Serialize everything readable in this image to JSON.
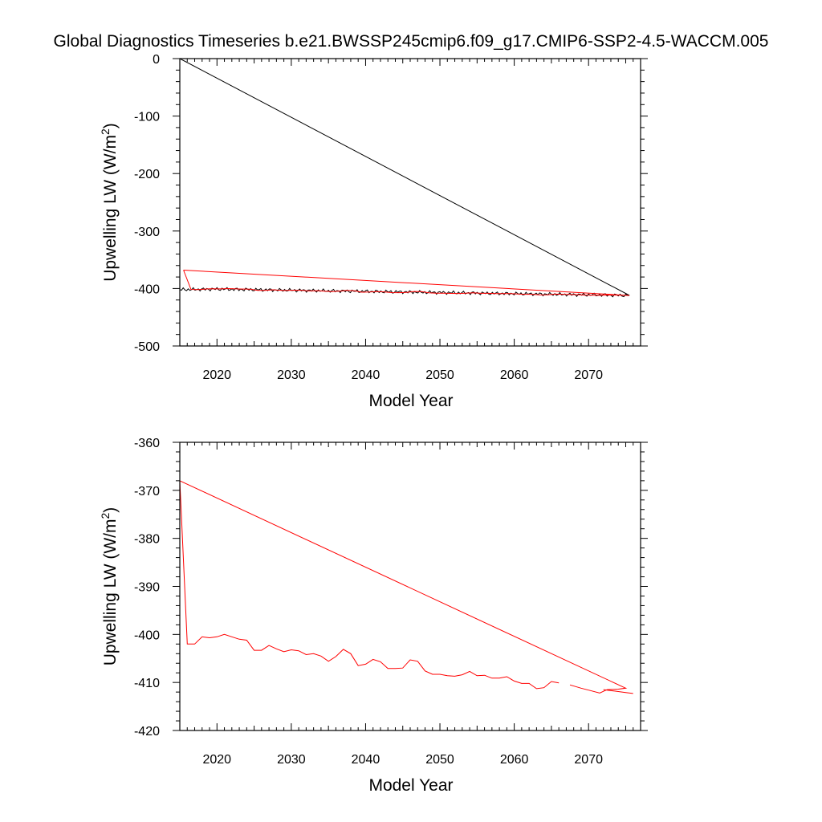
{
  "figure_title": "Global Diagnostics Timeseries b.e21.BWSSP245cmip6.f09_g17.CMIP6-SSP2-4.5-WACCM.005",
  "colors": {
    "background": "#ffffff",
    "axes": "#000000",
    "black_series": "#000000",
    "red_series": "#ff0000"
  },
  "chart_data": [
    {
      "type": "line",
      "title": "",
      "xlabel": "Model Year",
      "ylabel_prefix": "Upwelling LW (W/m",
      "ylabel_sup": "2",
      "ylabel_suffix": ")",
      "xlim": [
        2015,
        2077
      ],
      "ylim": [
        -500,
        0
      ],
      "xticks": [
        2020,
        2030,
        2040,
        2050,
        2060,
        2070
      ],
      "xtick_labels": [
        "2020",
        "2030",
        "2040",
        "2050",
        "2060",
        "2070"
      ],
      "yticks": [
        0,
        -100,
        -200,
        -300,
        -400,
        -500
      ],
      "ytick_labels": [
        "0",
        "-100",
        "-200",
        "-300",
        "-400",
        "-500"
      ],
      "grid": false,
      "legend": "none",
      "series": [
        {
          "color": "#000000",
          "x": [
            2015,
            2075.5
          ],
          "y": [
            0,
            -412
          ],
          "note_wrap": "wrap-around segment"
        },
        {
          "color": "#000000",
          "oscillating": true,
          "x": [
            2015,
            2020,
            2025,
            2030,
            2035,
            2040,
            2045,
            2050,
            2055,
            2060,
            2065,
            2070,
            2075.5
          ],
          "y": [
            -402,
            -401,
            -402,
            -403,
            -404,
            -405,
            -406,
            -407,
            -408,
            -409,
            -410,
            -411,
            -412
          ]
        },
        {
          "color": "#ff0000",
          "x": [
            2015.5,
            2016.5,
            2017.5,
            2019,
            2020.5,
            2021.5,
            2023,
            2024.5,
            2025.5,
            2026.5,
            2027.5,
            2029,
            2030.5,
            2031.5,
            2032.5,
            2033.5,
            2034.5,
            2035.5,
            2036.5,
            2037.5,
            2038.5,
            2039.5,
            2040.5,
            2041.5,
            2042.5,
            2043.5,
            2044.5,
            2045.5,
            2046.5,
            2047.5,
            2048.5,
            2049.5,
            2050.5,
            2051.5,
            2052.5,
            2053.5,
            2054.5,
            2055.5,
            2056.5,
            2057.5,
            2058.5,
            2059.5,
            2060.5,
            2061.5,
            2062.5,
            2063.5,
            2064.5,
            2065.5,
            2066.5,
            2067.5,
            2068.5,
            2069.5,
            2070.5,
            2071.5,
            2072.5,
            2073.5,
            2074.5,
            2075.5,
            2015.5
          ],
          "y": [
            -368,
            -401.5,
            -401.8,
            -400.5,
            -400.7,
            -400.2,
            -400.8,
            -401.2,
            -403.2,
            -403.2,
            -402.3,
            -403.5,
            -403,
            -403.3,
            -404.2,
            -403.8,
            -404.6,
            -405.5,
            -404.5,
            -403.2,
            -404.1,
            -406.4,
            -406.1,
            -405.4,
            -405.8,
            -407.1,
            -407.2,
            -406.9,
            -405.1,
            -405.5,
            -407.5,
            -408.2,
            -408.3,
            -408.5,
            -408.6,
            -408.2,
            -407.6,
            -408.4,
            -408.4,
            -409,
            -409,
            -408.8,
            -409.6,
            -410.1,
            -410.1,
            -411.2,
            -411,
            -409.8,
            -410,
            -410.5,
            -410.8,
            -411.5,
            -411.6,
            -411.9,
            -411.5,
            -411.4,
            -411.8,
            -412.2,
            -368
          ]
        }
      ]
    },
    {
      "type": "line",
      "title": "",
      "xlabel": "Model Year",
      "ylabel_prefix": "Upwelling LW (W/m",
      "ylabel_sup": "2",
      "ylabel_suffix": ")",
      "xlim": [
        2015,
        2077
      ],
      "ylim": [
        -420,
        -360
      ],
      "xticks": [
        2020,
        2030,
        2040,
        2050,
        2060,
        2070
      ],
      "xtick_labels": [
        "2020",
        "2030",
        "2040",
        "2050",
        "2060",
        "2070"
      ],
      "yticks": [
        -360,
        -370,
        -380,
        -390,
        -400,
        -410,
        -420
      ],
      "ytick_labels": [
        "-360",
        "-370",
        "-380",
        "-390",
        "-400",
        "-410",
        "-420"
      ],
      "grid": false,
      "legend": "none",
      "series": [
        {
          "color": "#ff0000",
          "x": [
            2015,
            2016,
            2017,
            2018,
            2019,
            2020,
            2021,
            2022,
            2023,
            2024,
            2025,
            2026,
            2027,
            2028,
            2029,
            2030,
            2031,
            2032,
            2033,
            2034,
            2035,
            2036,
            2037,
            2038,
            2039,
            2040,
            2041,
            2042,
            2043,
            2044,
            2045,
            2046,
            2047,
            2048,
            2049,
            2050,
            2051,
            2052,
            2053,
            2054,
            2055,
            2056,
            2057,
            2058,
            2059,
            2060,
            2061,
            2062,
            2063,
            2064,
            2065,
            2066
          ],
          "y": [
            -368,
            -402,
            -402,
            -400.5,
            -400.7,
            -400.5,
            -400,
            -400.5,
            -401,
            -401.2,
            -403.3,
            -403.3,
            -402.3,
            -403,
            -403.6,
            -403.2,
            -403.4,
            -404.2,
            -404,
            -404.5,
            -405.6,
            -404.6,
            -403.1,
            -404,
            -406.5,
            -406.2,
            -405.2,
            -405.7,
            -407.1,
            -407.1,
            -407,
            -405.3,
            -405.6,
            -407.6,
            -408.3,
            -408.3,
            -408.6,
            -408.7,
            -408.4,
            -407.7,
            -408.6,
            -408.5,
            -409.1,
            -409.1,
            -408.8,
            -409.7,
            -410.2,
            -410.2,
            -411.3,
            -411.1,
            -409.8,
            -410.1
          ]
        },
        {
          "color": "#ff0000",
          "x": [
            2067.5,
            2069,
            2070,
            2071.5,
            2072.5,
            2074,
            2075,
            2015
          ],
          "y": [
            -410.5,
            -411.2,
            -411.6,
            -412.2,
            -411.5,
            -411.4,
            -411.2,
            -368
          ]
        },
        {
          "color": "#ff0000",
          "x": [
            2072,
            2073.5,
            2075,
            2076
          ],
          "y": [
            -411.5,
            -411.8,
            -412.1,
            -412.3
          ]
        }
      ]
    }
  ]
}
